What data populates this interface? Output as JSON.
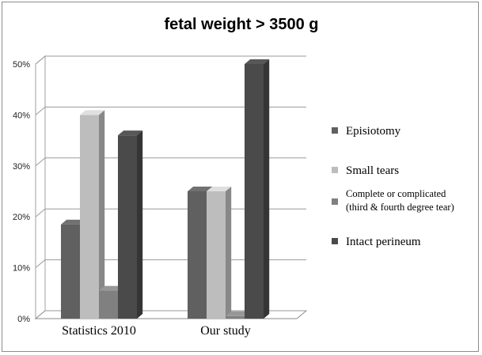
{
  "chart_data": {
    "type": "bar",
    "title": "fetal weight > 3500 g",
    "categories": [
      "Statistics 2010",
      "Our study"
    ],
    "series": [
      {
        "name": "Episiotomy",
        "values": [
          18.5,
          25
        ],
        "color": "#606060"
      },
      {
        "name": "Small tears",
        "values": [
          40,
          25
        ],
        "color": "#bdbdbd"
      },
      {
        "name": "Complete or complicated (third & fourth degree tear)",
        "name_lines": [
          "Complete or complicated",
          "(third & fourth degree tear)"
        ],
        "values": [
          5.5,
          0.5
        ],
        "color": "#808080"
      },
      {
        "name": "Intact perineum",
        "values": [
          36,
          50
        ],
        "color": "#4a4a4a"
      }
    ],
    "yticks": [
      "0%",
      "10%",
      "20%",
      "30%",
      "40%",
      "50%"
    ],
    "ylim": [
      0,
      50
    ],
    "xlabel": "",
    "ylabel": "",
    "grid": true,
    "legend_position": "right",
    "style": "3d-bar"
  }
}
